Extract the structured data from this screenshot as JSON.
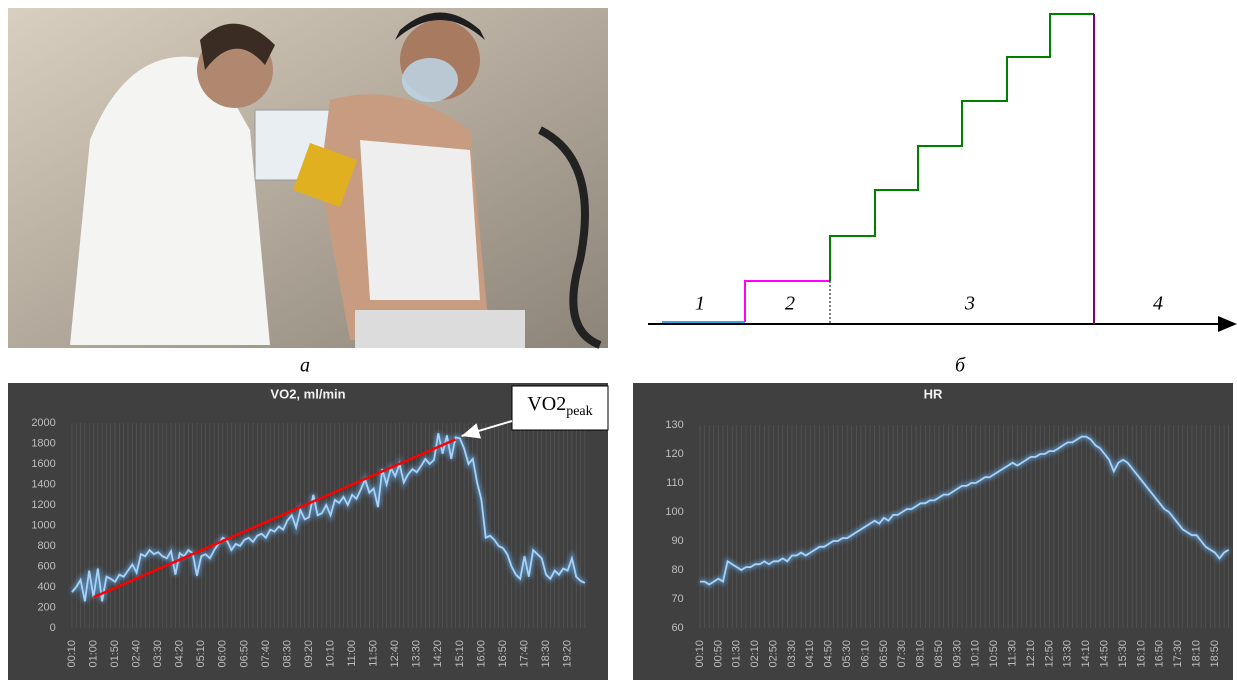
{
  "figure": {
    "panel_labels": [
      "а",
      "б"
    ]
  },
  "diagram": {
    "phases": [
      "1",
      "2",
      "3",
      "4"
    ]
  },
  "chart_data": [
    {
      "type": "line",
      "title": "VO2, ml/min",
      "color": "#5b9bd5",
      "categories": [
        "00:10",
        null,
        null,
        null,
        null,
        "01:00",
        null,
        null,
        null,
        null,
        "01:50",
        null,
        null,
        null,
        null,
        "02:40",
        null,
        null,
        null,
        null,
        "03:30",
        null,
        null,
        null,
        null,
        "04:20",
        null,
        null,
        null,
        null,
        "05:10",
        null,
        null,
        null,
        null,
        "06:00",
        null,
        null,
        null,
        null,
        "06:50",
        null,
        null,
        null,
        null,
        "07:40",
        null,
        null,
        null,
        null,
        "08:30",
        null,
        null,
        null,
        null,
        "09:20",
        null,
        null,
        null,
        null,
        "10:10",
        null,
        null,
        null,
        null,
        "11:00",
        null,
        null,
        null,
        null,
        "11:50",
        null,
        null,
        null,
        null,
        "12:40",
        null,
        null,
        null,
        null,
        "13:30",
        null,
        null,
        null,
        null,
        "14:20",
        null,
        null,
        null,
        null,
        "15:10",
        null,
        null,
        null,
        null,
        "16:00",
        null,
        null,
        null,
        null,
        "16:50",
        null,
        null,
        null,
        null,
        "17:40",
        null,
        null,
        null,
        null,
        "18:30",
        null,
        null,
        null,
        null,
        "19:20",
        null,
        null,
        null,
        null
      ],
      "values": [
        350,
        400,
        470,
        260,
        560,
        300,
        580,
        260,
        500,
        480,
        450,
        520,
        500,
        560,
        620,
        540,
        720,
        700,
        760,
        720,
        740,
        700,
        680,
        750,
        520,
        730,
        700,
        760,
        730,
        510,
        700,
        720,
        680,
        760,
        820,
        880,
        850,
        760,
        820,
        800,
        860,
        880,
        840,
        900,
        920,
        880,
        960,
        940,
        990,
        960,
        1050,
        1100,
        980,
        1150,
        1060,
        1080,
        1300,
        1100,
        1120,
        1200,
        1100,
        1250,
        1220,
        1280,
        1200,
        1300,
        1260,
        1350,
        1450,
        1320,
        1360,
        1180,
        1550,
        1400,
        1560,
        1480,
        1600,
        1420,
        1500,
        1550,
        1520,
        1580,
        1650,
        1600,
        1640,
        1900,
        1700,
        1880,
        1650,
        1860,
        1850,
        1750,
        1600,
        1650,
        1420,
        1250,
        880,
        900,
        860,
        800,
        780,
        720,
        600,
        520,
        480,
        700,
        500,
        760,
        720,
        680,
        520,
        480,
        560,
        520,
        580,
        560,
        680,
        500,
        460,
        440
      ],
      "ylim": [
        0,
        2000
      ],
      "yticks": [
        0,
        200,
        400,
        600,
        800,
        1000,
        1200,
        1400,
        1600,
        1800,
        2000
      ],
      "trend_line": {
        "x": [
          5,
          89
        ],
        "values": [
          300,
          1840
        ],
        "color": "#ff0000"
      },
      "annotation": {
        "text": "VO2",
        "subscript": "peak"
      }
    },
    {
      "type": "line",
      "title": "HR",
      "color": "#5b9bd5",
      "categories": [
        "00:10",
        null,
        null,
        null,
        "00:50",
        null,
        null,
        null,
        "01:30",
        null,
        null,
        null,
        "02:10",
        null,
        null,
        null,
        "02:50",
        null,
        null,
        null,
        "03:30",
        null,
        null,
        null,
        "04:10",
        null,
        null,
        null,
        "04:50",
        null,
        null,
        null,
        "05:30",
        null,
        null,
        null,
        "06:10",
        null,
        null,
        null,
        "06:50",
        null,
        null,
        null,
        "07:30",
        null,
        null,
        null,
        "08:10",
        null,
        null,
        null,
        "08:50",
        null,
        null,
        null,
        "09:30",
        null,
        null,
        null,
        "10:10",
        null,
        null,
        null,
        "10:50",
        null,
        null,
        null,
        "11:30",
        null,
        null,
        null,
        "12:10",
        null,
        null,
        null,
        "12:50",
        null,
        null,
        null,
        "13:30",
        null,
        null,
        null,
        "14:10",
        null,
        null,
        null,
        "14:50",
        null,
        null,
        null,
        "15:30",
        null,
        null,
        null,
        "16:10",
        null,
        null,
        null,
        "16:50",
        null,
        null,
        null,
        "17:30",
        null,
        null,
        null,
        "18:10",
        null,
        null,
        null,
        "18:50",
        null,
        null,
        null
      ],
      "values": [
        76,
        76,
        75,
        76,
        77,
        76,
        83,
        82,
        81,
        80,
        81,
        81,
        82,
        82,
        83,
        82,
        83,
        83,
        84,
        83,
        85,
        85,
        86,
        85,
        86,
        87,
        88,
        88,
        89,
        90,
        90,
        91,
        91,
        92,
        93,
        94,
        95,
        96,
        97,
        96,
        98,
        97,
        99,
        99,
        100,
        101,
        101,
        102,
        103,
        103,
        104,
        104,
        105,
        106,
        106,
        107,
        108,
        109,
        109,
        110,
        110,
        111,
        112,
        112,
        113,
        114,
        115,
        116,
        117,
        116,
        117,
        118,
        119,
        119,
        120,
        120,
        121,
        121,
        122,
        123,
        124,
        124,
        125,
        126,
        126,
        125,
        123,
        122,
        120,
        118,
        114,
        117,
        118,
        117,
        115,
        113,
        111,
        109,
        107,
        105,
        103,
        101,
        100,
        98,
        96,
        94,
        93,
        92,
        92,
        90,
        88,
        87,
        86,
        84,
        86,
        87
      ],
      "ylim": [
        60,
        130
      ],
      "yticks": [
        60,
        70,
        80,
        90,
        100,
        110,
        120,
        130
      ]
    }
  ]
}
